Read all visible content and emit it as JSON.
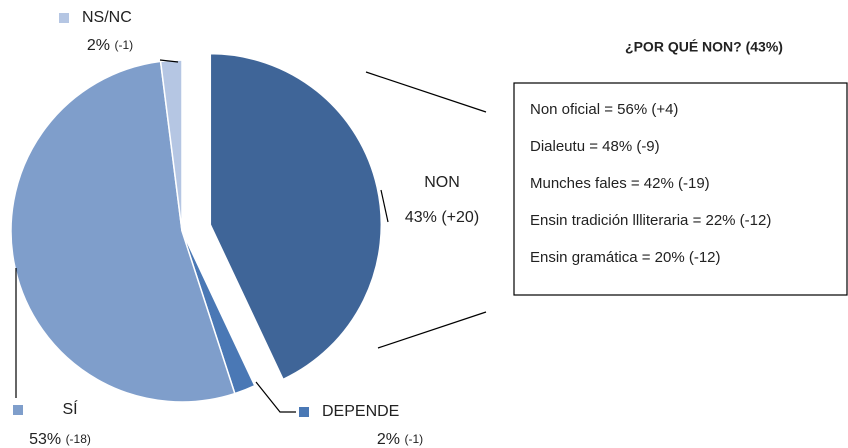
{
  "chart_data": {
    "type": "pie",
    "categories": [
      "NON",
      "DEPENDE",
      "SÍ",
      "NS/NC"
    ],
    "values": [
      43,
      2,
      53,
      2
    ],
    "value_labels": [
      "43%",
      "2%",
      "53%",
      "2%"
    ],
    "changes": [
      "(+20)",
      "(-1)",
      "(-18)",
      "(-1)"
    ],
    "colors": [
      "#3f6598",
      "#4a78b5",
      "#7f9ecb",
      "#b5c6e3"
    ],
    "explode": [
      true,
      false,
      false,
      false
    ]
  },
  "callout": {
    "title": "¿POR QUÉ NON? (43%)",
    "items": [
      "Non oficial = 56% (+4)",
      "Dialeutu = 48% (-9)",
      "Munches fales = 42% (-19)",
      "Ensin tradición llliteraria = 22% (-12)",
      "Ensin gramática = 20% (-12)"
    ]
  }
}
